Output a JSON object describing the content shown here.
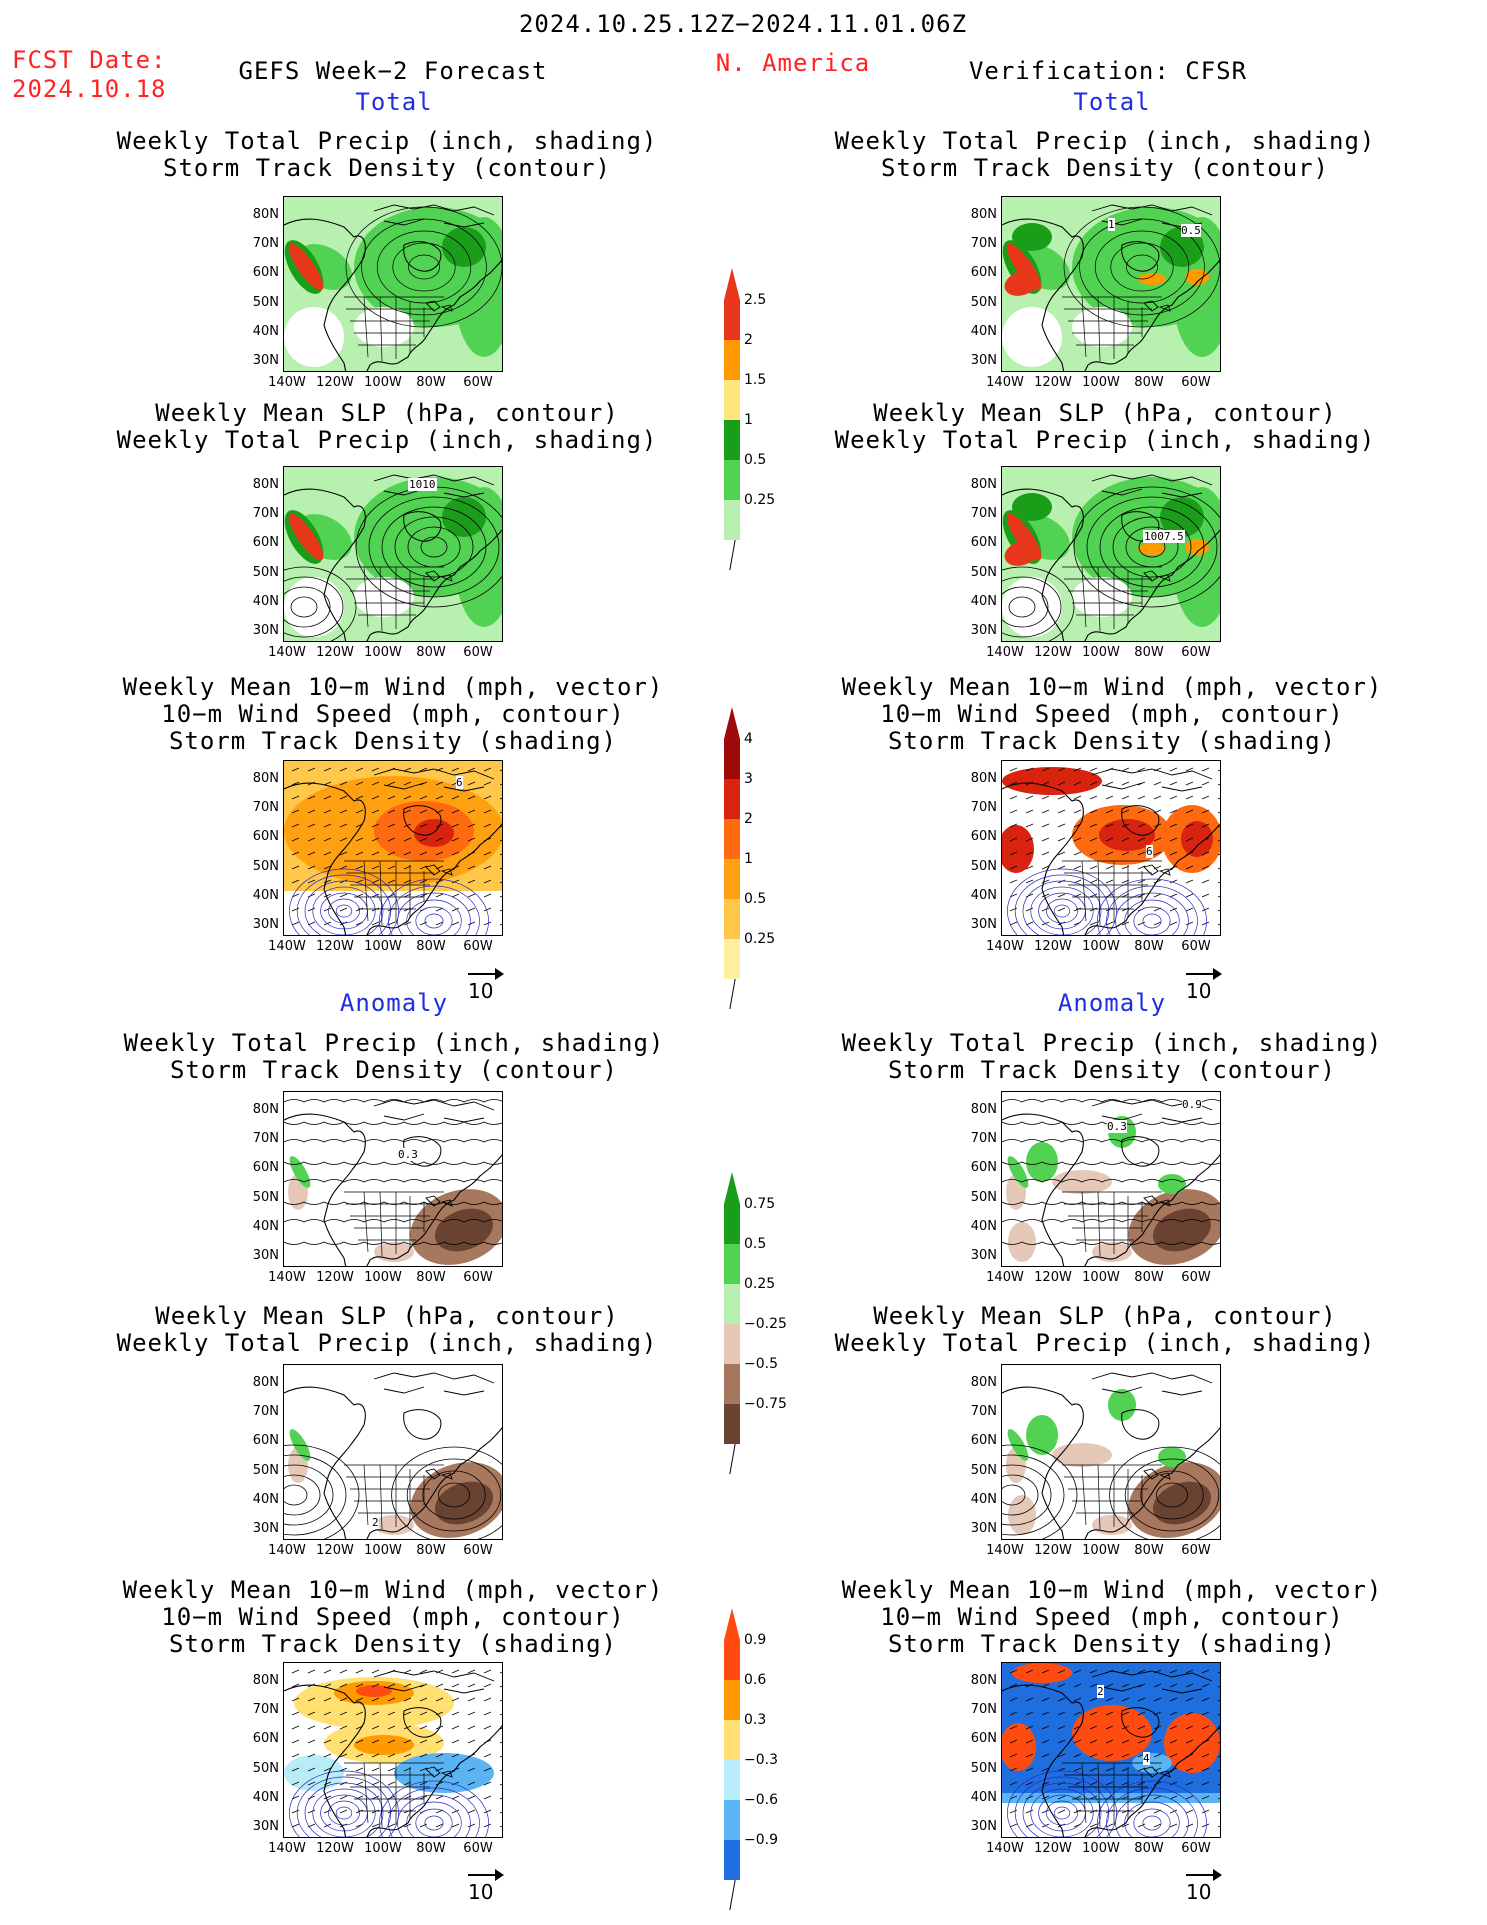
{
  "header": {
    "period": "2024.10.25.12Z−2024.11.01.06Z",
    "fcst_label": "FCST Date:",
    "fcst_date": "2024.10.18",
    "left_title": "GEFS Week−2 Forecast",
    "region": "N. America",
    "right_title": "Verification: CFSR"
  },
  "sections": {
    "total": "Total",
    "anomaly": "Anomaly"
  },
  "panel_titles": {
    "precip_storm": [
      "Weekly Total Precip (inch, shading)",
      "Storm Track Density (contour)"
    ],
    "slp_precip": [
      "Weekly Mean SLP (hPa, contour)",
      "Weekly Total Precip (inch, shading)"
    ],
    "wind_storm": [
      "Weekly Mean 10−m Wind (mph, vector)",
      "10−m Wind Speed (mph, contour)",
      "Storm Track Density (shading)"
    ]
  },
  "axes": {
    "lat_labels": [
      "80N",
      "70N",
      "60N",
      "50N",
      "40N",
      "30N"
    ],
    "lon_labels": [
      "140W",
      "120W",
      "100W",
      "80W",
      "60W"
    ]
  },
  "vector_ref": "10",
  "contour_labels": {
    "fc_slp_total": "1010",
    "ob_slp_total": "1007.5",
    "ob_storm_total_a": "1",
    "ob_storm_total_b": "0.5",
    "fc_wind_total": "6",
    "ob_wind_total": "6",
    "fc_storm_anom": "0.3",
    "ob_storm_anom_a": "0.3",
    "ob_storm_anom_b": "0.9",
    "fc_slp_anom": "2",
    "ob_wind_anom_a": "2",
    "ob_wind_anom_b": "4"
  },
  "colorbars": {
    "precip_total": {
      "labels": [
        "2.5",
        "2",
        "1.5",
        "1",
        "0.5",
        "0.25"
      ],
      "colors": [
        "#e8361a",
        "#ff9a00",
        "#ffe680",
        "#1a9e1a",
        "#52d252",
        "#b8f0b0"
      ]
    },
    "storm_total": {
      "labels": [
        "4",
        "3",
        "2",
        "1",
        "0.5",
        "0.25"
      ],
      "colors": [
        "#9e0a0a",
        "#d9230f",
        "#ff6a10",
        "#ffa010",
        "#ffc84a",
        "#fff0a0"
      ]
    },
    "precip_anom": {
      "labels": [
        "0.75",
        "0.5",
        "0.25",
        "−0.25",
        "−0.5",
        "−0.75"
      ],
      "colors": [
        "#1a9e1a",
        "#52d252",
        "#b8f0b0",
        "#e6c8b8",
        "#a8785e",
        "#6a4232"
      ]
    },
    "storm_anom": {
      "labels": [
        "0.9",
        "0.6",
        "0.3",
        "−0.3",
        "−0.6",
        "−0.9"
      ],
      "colors": [
        "#ff4a10",
        "#ff9a00",
        "#ffe070",
        "#b8ecf8",
        "#5ab4f4",
        "#1e6ee0"
      ]
    }
  },
  "colors": {
    "title_red": "#ff2222",
    "section_blue": "#1e2ee0"
  }
}
